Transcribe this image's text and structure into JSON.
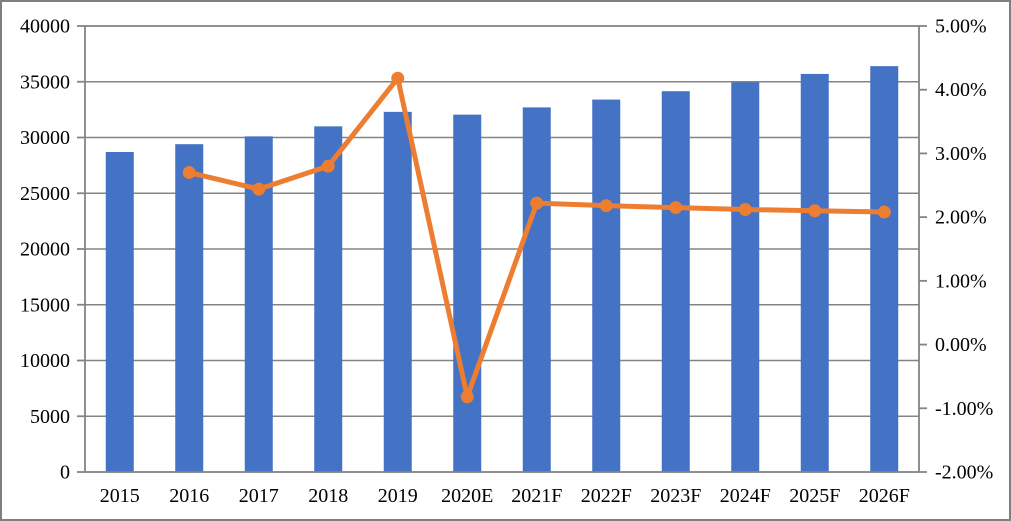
{
  "figure": {
    "title": "",
    "legend": "none",
    "background_color": "#ffffff",
    "frame_color": "#7f7f7f"
  },
  "chart_data": {
    "type": "bar",
    "subtype": "combo-bar-line-dual-axis",
    "title": "",
    "xlabel": "",
    "ylabel_left": "",
    "ylabel_right": "",
    "grid": true,
    "legend_position": "none",
    "categories": [
      "2015",
      "2016",
      "2017",
      "2018",
      "2019",
      "2020E",
      "2021F",
      "2022F",
      "2023F",
      "2024F",
      "2025F",
      "2026F"
    ],
    "series": [
      {
        "name": "volume-bars",
        "type": "bar",
        "axis": "left",
        "color": "#4472C4",
        "values": [
          28700,
          29400,
          30100,
          31000,
          32300,
          32050,
          32700,
          33400,
          34150,
          34950,
          35700,
          36400
        ]
      },
      {
        "name": "growth-rate-line",
        "type": "line",
        "axis": "right",
        "color": "#ED7D31",
        "values": [
          null,
          2.7,
          2.44,
          2.8,
          4.18,
          -0.82,
          2.22,
          2.18,
          2.15,
          2.12,
          2.1,
          2.08
        ]
      }
    ],
    "left_axis": {
      "min": 0,
      "max": 40000,
      "step": 5000,
      "tick_labels": [
        "0",
        "5000",
        "10000",
        "15000",
        "20000",
        "25000",
        "30000",
        "35000",
        "40000"
      ]
    },
    "right_axis": {
      "min": -2,
      "max": 5,
      "step": 1,
      "tick_labels": [
        "-2.00%",
        "-1.00%",
        "0.00%",
        "1.00%",
        "2.00%",
        "3.00%",
        "4.00%",
        "5.00%"
      ]
    },
    "style": {
      "bar_color": "#4472C4",
      "line_color": "#ED7D31",
      "gridline_color": "#848484",
      "axis_color": "#848484",
      "label_color": "#000000"
    }
  }
}
